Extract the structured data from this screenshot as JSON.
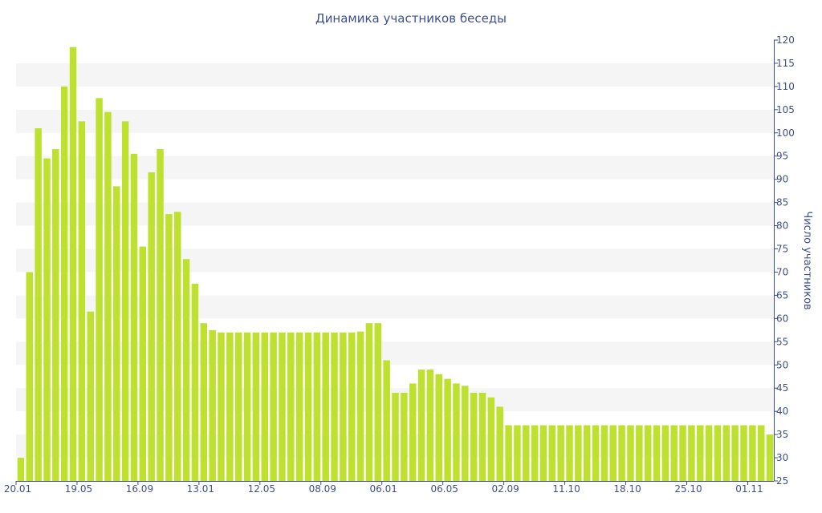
{
  "chart_data": {
    "type": "bar",
    "title": "Динамика участников беседы",
    "ylabel": "Число участников",
    "xlabel": "",
    "ylim": [
      25,
      120
    ],
    "y_ticks": [
      25,
      30,
      35,
      40,
      45,
      50,
      55,
      60,
      65,
      70,
      75,
      80,
      85,
      90,
      95,
      100,
      105,
      110,
      115,
      120
    ],
    "y_axis_side": "right",
    "grid": "alternating horizontal bands",
    "bar_color": "#bde12e",
    "text_color": "#3e4f8c",
    "x_tick_labels": [
      {
        "index": 0,
        "label": "20.01"
      },
      {
        "index": 7,
        "label": "19.05"
      },
      {
        "index": 14,
        "label": "16.09"
      },
      {
        "index": 21,
        "label": "13.01"
      },
      {
        "index": 28,
        "label": "12.05"
      },
      {
        "index": 35,
        "label": "08.09"
      },
      {
        "index": 42,
        "label": "06.01"
      },
      {
        "index": 49,
        "label": "06.05"
      },
      {
        "index": 56,
        "label": "02.09"
      },
      {
        "index": 63,
        "label": "11.10"
      },
      {
        "index": 70,
        "label": "18.10"
      },
      {
        "index": 77,
        "label": "25.10"
      },
      {
        "index": 84,
        "label": "01.11"
      }
    ],
    "values": [
      30,
      70,
      101,
      94.5,
      96.5,
      110,
      118.5,
      102.5,
      61.5,
      107.5,
      104.5,
      88.5,
      102.5,
      95.5,
      75.5,
      91.5,
      96.5,
      82.5,
      83,
      72.8,
      67.5,
      59,
      57.5,
      57,
      57,
      57,
      57,
      57,
      57,
      57,
      57,
      57,
      57,
      57,
      57,
      57,
      57,
      57,
      57,
      57.2,
      59,
      59,
      51,
      44,
      44,
      46,
      49,
      49,
      48,
      47,
      46,
      45.5,
      44,
      44,
      43,
      41,
      37,
      37,
      37,
      37,
      37,
      37,
      37,
      37,
      37,
      37,
      37,
      37,
      37,
      37,
      37,
      37,
      37,
      37,
      37,
      37,
      37,
      37,
      37,
      37,
      37,
      37,
      37,
      37,
      37,
      37,
      35
    ]
  }
}
